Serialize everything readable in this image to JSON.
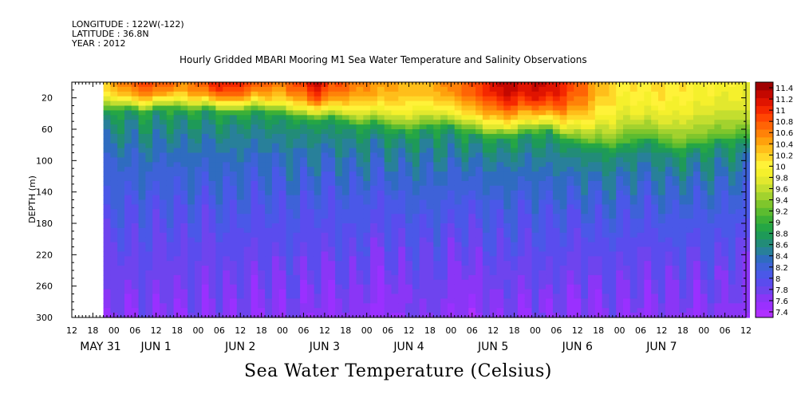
{
  "meta": {
    "longitude": "LONGITUDE : 122W(-122)",
    "latitude": "LATITUDE : 36.8N",
    "year": "YEAR : 2012"
  },
  "chart_data": {
    "type": "heatmap",
    "title": "Hourly Gridded MBARI Mooring M1 Sea Water Temperature and Salinity Observations",
    "xlabel": "",
    "ylabel": "DEPTH (m)",
    "caption": "Sea Water Temperature (Celsius)",
    "x_hour_ticks": [
      "12",
      "18",
      "00",
      "06",
      "12",
      "18",
      "00",
      "06",
      "12",
      "18",
      "00",
      "06",
      "12",
      "18",
      "00",
      "06",
      "12",
      "18",
      "00",
      "06",
      "12",
      "18",
      "00",
      "06",
      "12",
      "18",
      "00",
      "06",
      "12",
      "18",
      "00",
      "06",
      "12"
    ],
    "x_date_labels": [
      "MAY 31",
      "JUN  1",
      "JUN  2",
      "JUN  3",
      "JUN  4",
      "JUN  5",
      "JUN  6",
      "JUN  7"
    ],
    "y_ticks": [
      20,
      60,
      100,
      140,
      180,
      220,
      260,
      300
    ],
    "ylim": [
      300,
      0
    ],
    "x_range_hours": [
      -12,
      180
    ],
    "data_start_hour": -3,
    "colorbar_ticks": [
      "7.4",
      "7.6",
      "7.8",
      "8",
      "8.2",
      "8.4",
      "8.6",
      "8.8",
      "9",
      "9.2",
      "9.4",
      "9.6",
      "9.8",
      "10",
      "10.2",
      "10.4",
      "10.6",
      "10.8",
      "11",
      "11.2",
      "11.4"
    ],
    "colorbar_range": [
      7.3,
      11.5
    ],
    "colorbar_colors": [
      "#b030ff",
      "#9a30ff",
      "#8a36f6",
      "#6e44ee",
      "#5a4cee",
      "#4a58e8",
      "#3e62d8",
      "#2f6cc0",
      "#28809a",
      "#228c78",
      "#1e9a58",
      "#25a645",
      "#3cb037",
      "#5cbc30",
      "#7fc62c",
      "#a2d22e",
      "#c3de2f",
      "#e2e82e",
      "#f5f02c",
      "#fff238",
      "#ffd828",
      "#ffbe1a",
      "#ffa10c",
      "#ff8208",
      "#ff6405",
      "#ff4602",
      "#f52800",
      "#e01400",
      "#c40800",
      "#a00000"
    ],
    "surface_temperature_by_hour": [
      [
        -3,
        10.2
      ],
      [
        3,
        10.6
      ],
      [
        9,
        10.9
      ],
      [
        15,
        10.7
      ],
      [
        21,
        10.5
      ],
      [
        27,
        10.9
      ],
      [
        33,
        11.1
      ],
      [
        39,
        10.8
      ],
      [
        45,
        10.6
      ],
      [
        51,
        10.7
      ],
      [
        57,
        11.2
      ],
      [
        63,
        10.8
      ],
      [
        69,
        10.6
      ],
      [
        75,
        10.5
      ],
      [
        81,
        10.4
      ],
      [
        87,
        10.3
      ],
      [
        93,
        10.5
      ],
      [
        99,
        10.7
      ],
      [
        105,
        11.0
      ],
      [
        111,
        11.3
      ],
      [
        117,
        11.2
      ],
      [
        123,
        11.3
      ],
      [
        129,
        11.0
      ],
      [
        135,
        10.6
      ],
      [
        141,
        10.2
      ],
      [
        147,
        10.0
      ],
      [
        153,
        10.1
      ],
      [
        159,
        10.1
      ],
      [
        165,
        10.0
      ],
      [
        171,
        9.9
      ],
      [
        177,
        9.9
      ]
    ],
    "bottom_temperature_by_hour": [
      [
        -3,
        7.7
      ],
      [
        3,
        7.6
      ],
      [
        9,
        7.7
      ],
      [
        15,
        7.6
      ],
      [
        21,
        7.7
      ],
      [
        27,
        7.6
      ],
      [
        33,
        7.7
      ],
      [
        39,
        7.6
      ],
      [
        45,
        7.6
      ],
      [
        51,
        7.7
      ],
      [
        57,
        7.6
      ],
      [
        63,
        7.6
      ],
      [
        69,
        7.7
      ],
      [
        75,
        7.5
      ],
      [
        81,
        7.6
      ],
      [
        87,
        7.7
      ],
      [
        93,
        7.7
      ],
      [
        99,
        7.5
      ],
      [
        105,
        7.6
      ],
      [
        111,
        7.7
      ],
      [
        117,
        7.6
      ],
      [
        123,
        7.7
      ],
      [
        129,
        7.6
      ],
      [
        135,
        7.6
      ],
      [
        141,
        7.7
      ],
      [
        147,
        7.6
      ],
      [
        153,
        7.6
      ],
      [
        159,
        7.7
      ],
      [
        165,
        7.6
      ],
      [
        171,
        7.7
      ],
      [
        177,
        7.6
      ]
    ],
    "thermocline_depth_by_hour": [
      [
        -3,
        35
      ],
      [
        3,
        32
      ],
      [
        9,
        38
      ],
      [
        15,
        30
      ],
      [
        21,
        36
      ],
      [
        27,
        33
      ],
      [
        33,
        40
      ],
      [
        39,
        34
      ],
      [
        45,
        38
      ],
      [
        51,
        42
      ],
      [
        57,
        48
      ],
      [
        63,
        44
      ],
      [
        69,
        55
      ],
      [
        75,
        50
      ],
      [
        81,
        62
      ],
      [
        87,
        58
      ],
      [
        93,
        52
      ],
      [
        99,
        60
      ],
      [
        105,
        66
      ],
      [
        111,
        70
      ],
      [
        117,
        64
      ],
      [
        123,
        60
      ],
      [
        129,
        72
      ],
      [
        135,
        78
      ],
      [
        141,
        82
      ],
      [
        147,
        76
      ],
      [
        153,
        70
      ],
      [
        159,
        84
      ],
      [
        165,
        80
      ],
      [
        171,
        74
      ],
      [
        177,
        70
      ]
    ]
  }
}
